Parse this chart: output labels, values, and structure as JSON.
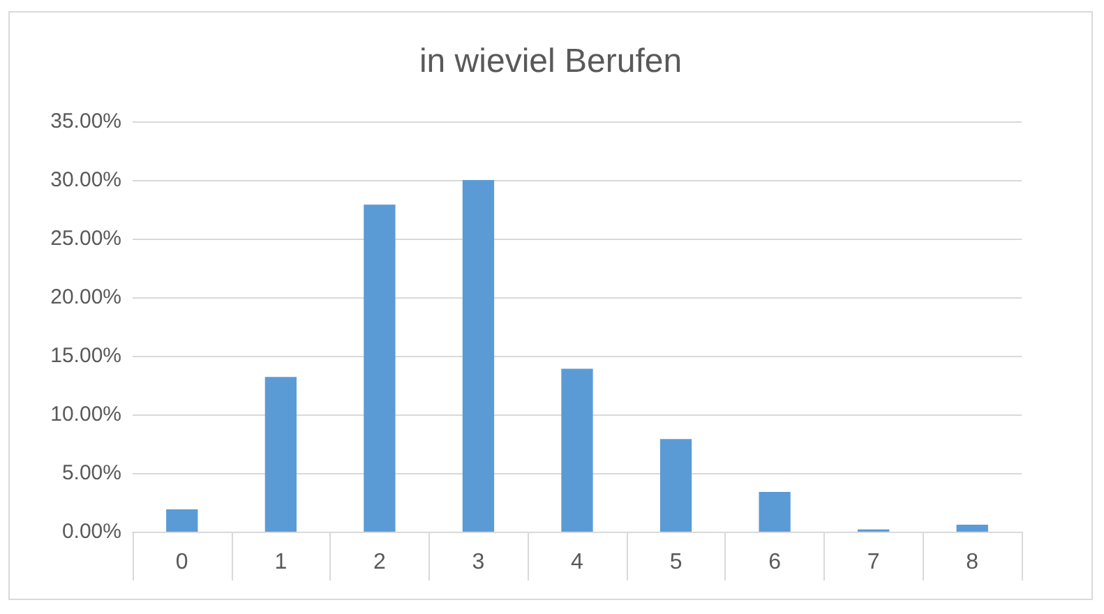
{
  "chart_data": {
    "type": "bar",
    "title": "in wieviel Berufen",
    "categories": [
      "0",
      "1",
      "2",
      "3",
      "4",
      "5",
      "6",
      "7",
      "8"
    ],
    "values": [
      1.9,
      13.2,
      27.9,
      30.0,
      13.9,
      7.9,
      3.4,
      0.2,
      0.6
    ],
    "color": "#5b9bd5",
    "ylim": [
      0,
      35
    ],
    "yticks": [
      {
        "value": 0,
        "label": "0.00%"
      },
      {
        "value": 5,
        "label": "5.00%"
      },
      {
        "value": 10,
        "label": "10.00%"
      },
      {
        "value": 15,
        "label": "15.00%"
      },
      {
        "value": 20,
        "label": "20.00%"
      },
      {
        "value": 25,
        "label": "25.00%"
      },
      {
        "value": 30,
        "label": "30.00%"
      },
      {
        "value": 35,
        "label": "35.00%"
      }
    ],
    "grid": "y"
  }
}
